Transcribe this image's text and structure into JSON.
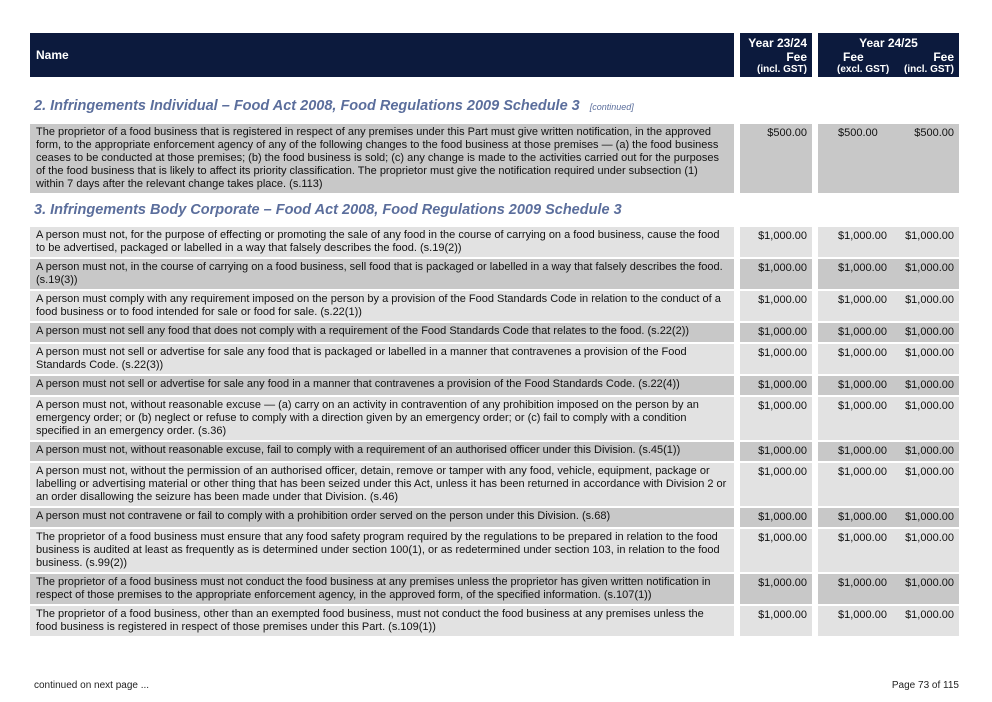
{
  "header": {
    "name": "Name",
    "y1": "Year 23/24",
    "y2": "Year 24/25",
    "fee": "Fee",
    "incl": "(incl. GST)",
    "excl": "(excl. GST)"
  },
  "section2": {
    "title": "2. Infringements Individual – Food Act 2008, Food Regulations 2009 Schedule 3",
    "continued": "[continued]",
    "rows": [
      {
        "name": "The proprietor of a food business that is registered in respect of any premises under this Part must give written notification, in the approved form, to the appropriate enforcement agency of any of the following changes to the food business at those premises — (a) the food business ceases to be conducted at those premises; (b) the food business is sold; (c) any change is made to the activities carried out for the purposes of the food business that is likely to affect its priority classification. The proprietor must give the notification required under subsection (1) within 7 days after the relevant change takes place. (s.113)",
        "f1": "$500.00",
        "f2": "$500.00",
        "f3": "$500.00"
      }
    ]
  },
  "section3": {
    "title": "3. Infringements Body Corporate – Food Act 2008, Food Regulations 2009 Schedule 3",
    "rows": [
      {
        "name": "A person must not, for the purpose of effecting or promoting the sale of any food in the course of carrying on a food business, cause the food to be advertised, packaged or labelled in a way that falsely describes the food. (s.19(2))",
        "f1": "$1,000.00",
        "f2": "$1,000.00",
        "f3": "$1,000.00"
      },
      {
        "name": "A person must not, in the course of carrying on a food business, sell food that is packaged or labelled in a way that falsely describes the food. (s.19(3))",
        "f1": "$1,000.00",
        "f2": "$1,000.00",
        "f3": "$1,000.00"
      },
      {
        "name": "A person must comply with any requirement imposed on the person by a provision of the Food Standards Code in relation to the conduct of a food business or to food intended for sale or food for sale. (s.22(1))",
        "f1": "$1,000.00",
        "f2": "$1,000.00",
        "f3": "$1,000.00"
      },
      {
        "name": "A person must not sell any food that does not comply with a requirement of the Food Standards Code that relates to the food. (s.22(2))",
        "f1": "$1,000.00",
        "f2": "$1,000.00",
        "f3": "$1,000.00"
      },
      {
        "name": "A person must not sell or advertise for sale any food that is packaged or labelled in a manner that contravenes a provision of the Food Standards Code. (s.22(3))",
        "f1": "$1,000.00",
        "f2": "$1,000.00",
        "f3": "$1,000.00"
      },
      {
        "name": "A person must not sell or advertise for sale any food in a manner that contravenes a provision of the Food Standards Code. (s.22(4))",
        "f1": "$1,000.00",
        "f2": "$1,000.00",
        "f3": "$1,000.00"
      },
      {
        "name": "A person must not, without reasonable excuse — (a) carry on an activity in contravention of any prohibition imposed on the person by an emergency order; or (b) neglect or refuse to comply with a direction given by an emergency order; or (c) fail to comply with a condition specified in an emergency order. (s.36)",
        "f1": "$1,000.00",
        "f2": "$1,000.00",
        "f3": "$1,000.00"
      },
      {
        "name": "A person must not, without reasonable excuse, fail to comply with a requirement of an authorised officer under this Division. (s.45(1))",
        "f1": "$1,000.00",
        "f2": "$1,000.00",
        "f3": "$1,000.00"
      },
      {
        "name": "A person must not, without the permission of an authorised officer, detain, remove or tamper with any food, vehicle, equipment, package or labelling or advertising material or other thing that has been seized under this Act, unless it has been returned in accordance with Division 2 or an order disallowing the seizure has been made under that Division. (s.46)",
        "f1": "$1,000.00",
        "f2": "$1,000.00",
        "f3": "$1,000.00"
      },
      {
        "name": "A person must not contravene or fail to comply with a prohibition order served on the person under this Division. (s.68)",
        "f1": "$1,000.00",
        "f2": "$1,000.00",
        "f3": "$1,000.00"
      },
      {
        "name": "The proprietor of a food business must ensure that any food safety program required by the regulations to be prepared in relation to the food business is audited at least as frequently as is determined under section 100(1), or as redetermined under section 103, in relation to the food business. (s.99(2))",
        "f1": "$1,000.00",
        "f2": "$1,000.00",
        "f3": "$1,000.00"
      },
      {
        "name": "The proprietor of a food business must not conduct the food business at any premises unless the proprietor has given written notification in respect of those premises to the appropriate enforcement agency, in the approved form, of the specified information. (s.107(1))",
        "f1": "$1,000.00",
        "f2": "$1,000.00",
        "f3": "$1,000.00"
      },
      {
        "name": "The proprietor of a food business, other than an exempted food business, must not conduct the food business at any premises unless the food business is registered in respect of those premises under this Part. (s.109(1))",
        "f1": "$1,000.00",
        "f2": "$1,000.00",
        "f3": "$1,000.00"
      }
    ]
  },
  "footer": {
    "continued": "continued on next page ...",
    "page": "Page 73 of 115"
  }
}
